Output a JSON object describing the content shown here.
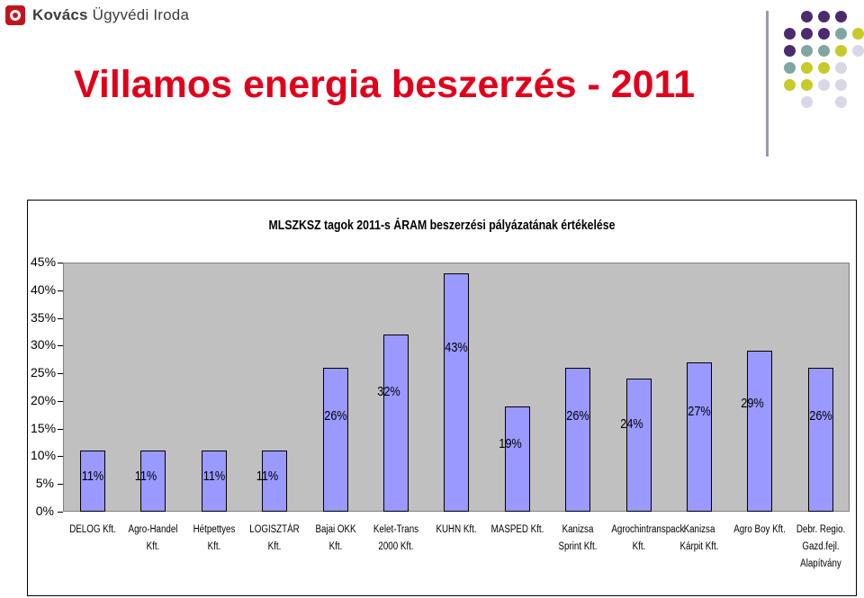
{
  "header": {
    "logo_text_bold": "Kovács",
    "logo_text_rest": " Ügyvédi Iroda",
    "title": "Villamos energia beszerzés - 2011"
  },
  "colors": {
    "title": "#e0001b",
    "bar": "#9999ff",
    "plot_bg": "#c0c0c0"
  },
  "chart_data": {
    "type": "bar",
    "title": "MLSZKSZ tagok 2011-s ÁRAM beszerzési pályázatának értékelése",
    "categories": [
      "DELOG Kft.",
      "Agro-Handel Kft.",
      "Hétpettyes Kft.",
      "LOGISZTÁR Kft.",
      "Bajai OKK Kft.",
      "Kelet-Trans 2000 Kft.",
      "KUHN Kft.",
      "MASPED Kft.",
      "Kanizsa Sprint Kft.",
      "Agrochintranspack Kft.",
      "Kanizsa Kárpit Kft.",
      "Agro Boy Kft.",
      "Debr. Regio. Gazd.fejl. Alapítvány"
    ],
    "values": [
      11,
      11,
      11,
      11,
      26,
      32,
      43,
      19,
      26,
      24,
      27,
      29,
      26
    ],
    "value_labels": [
      "11%",
      "11%",
      "11%",
      "11%",
      "26%",
      "32%",
      "43%",
      "19%",
      "26%",
      "24%",
      "27%",
      "29%",
      "26%"
    ],
    "yticks": [
      "0%",
      "5%",
      "10%",
      "15%",
      "20%",
      "25%",
      "30%",
      "35%",
      "40%",
      "45%"
    ],
    "ylim": [
      0,
      45
    ],
    "xlabel": "",
    "ylabel": "",
    "legend": "none",
    "grid": false
  }
}
